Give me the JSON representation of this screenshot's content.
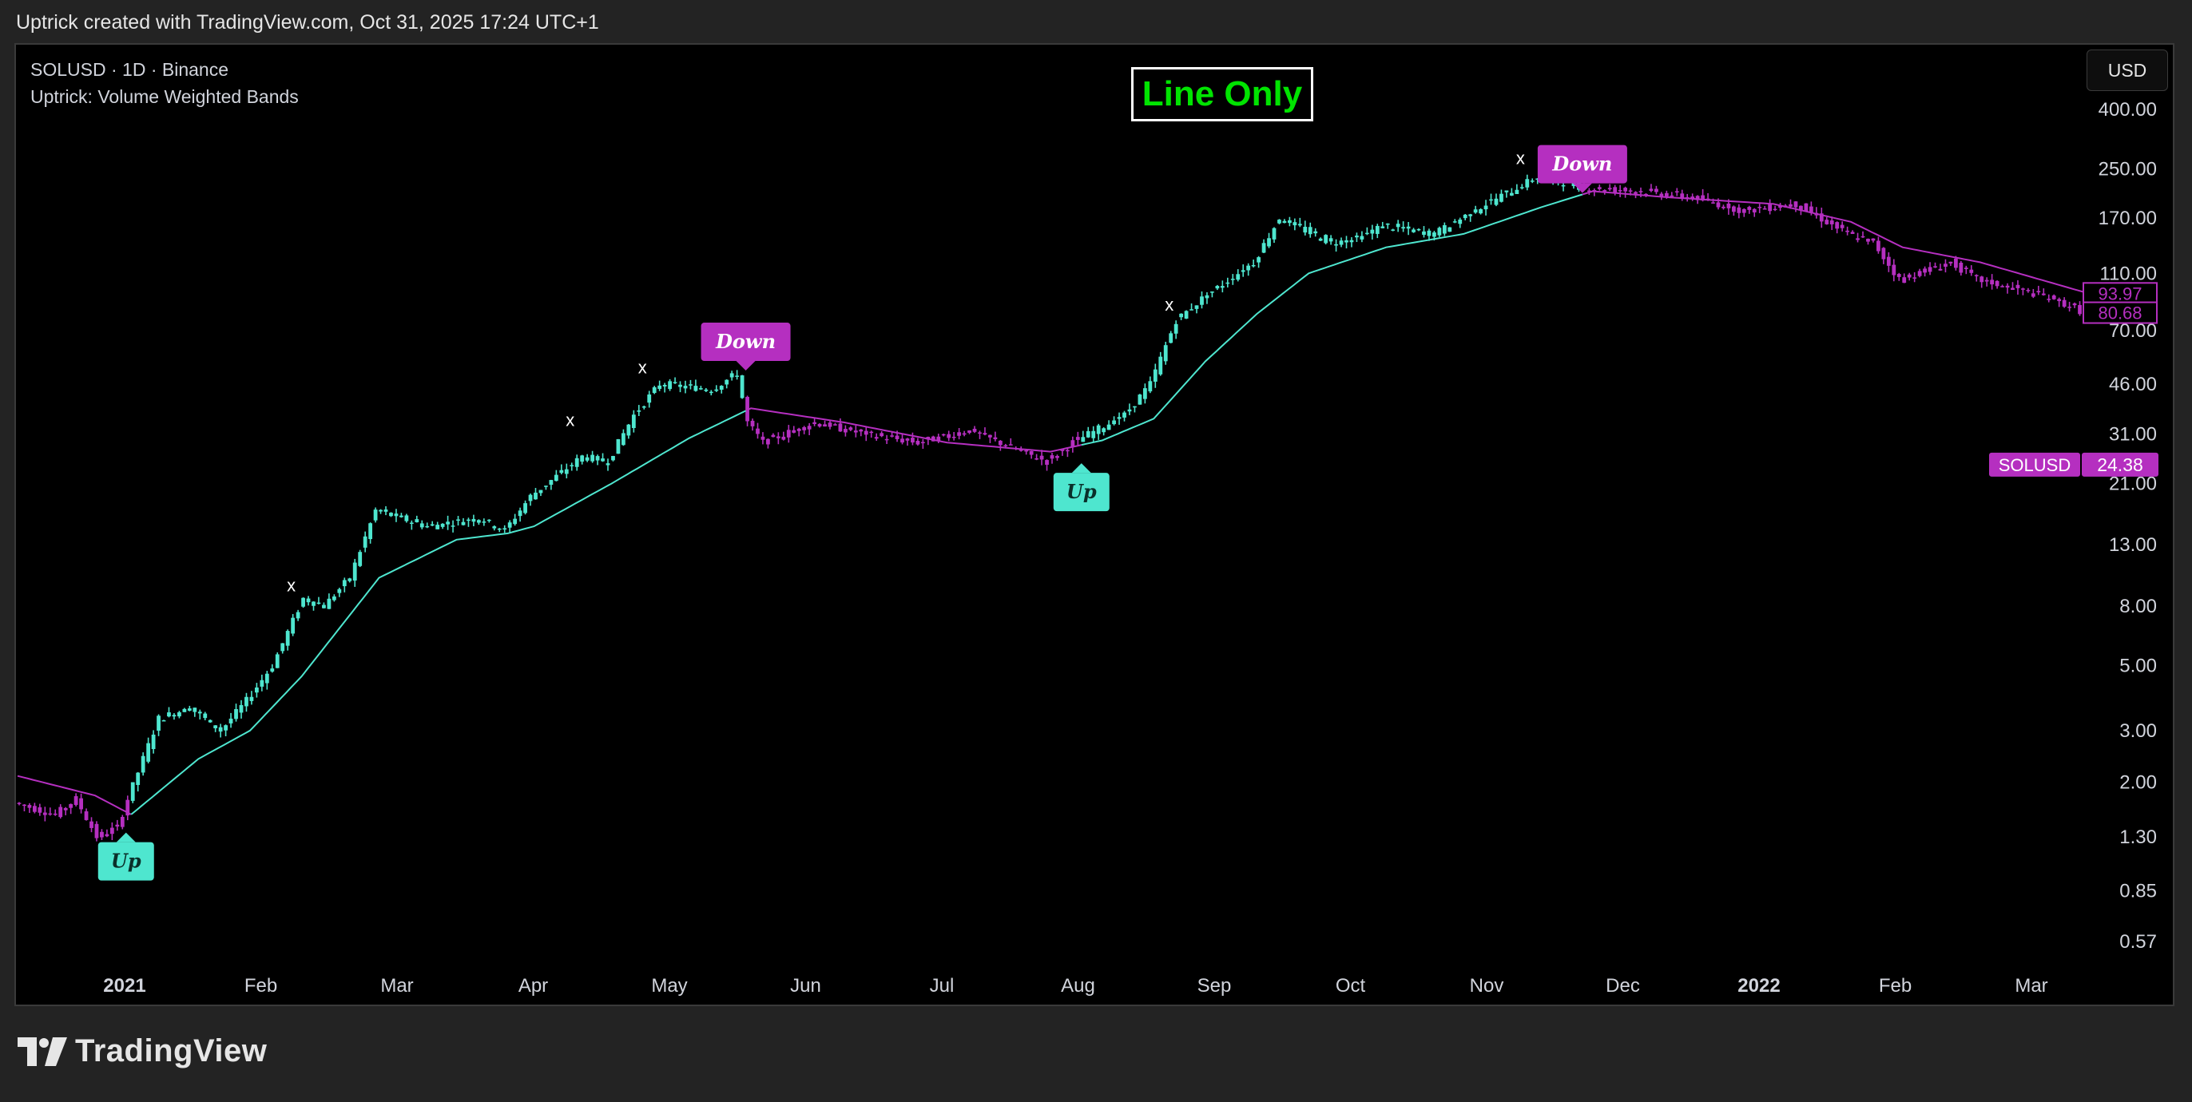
{
  "header": {
    "text": "Uptrick created with TradingView.com, Oct 31, 2025 17:24 UTC+1"
  },
  "symbol_line": "SOLUSD · 1D · Binance",
  "indicator_line": "Uptrick: Volume Weighted Bands",
  "mode_label": "Line Only",
  "currency_button": "USD",
  "footer": {
    "logo_text": "TradingView"
  },
  "colors": {
    "bull": "#4ee6cf",
    "bear": "#b52fc0",
    "background": "#000000",
    "frame": "#232323",
    "mode_label": "#00e400"
  },
  "chart_data": {
    "type": "line",
    "scale": "log",
    "x_ticks": [
      "2021",
      "Feb",
      "Mar",
      "Apr",
      "May",
      "Jun",
      "Jul",
      "Aug",
      "Sep",
      "Oct",
      "Nov",
      "Dec",
      "2022",
      "Feb",
      "Mar"
    ],
    "x_ticks_bold": [
      "2021",
      "2022"
    ],
    "y_ticks": [
      400.0,
      250.0,
      170.0,
      110.0,
      70.0,
      46.0,
      31.0,
      21.0,
      13.0,
      8.0,
      5.0,
      3.0,
      2.0,
      1.3,
      0.85,
      0.57
    ],
    "price_badges": [
      {
        "label": "",
        "value": "93.97",
        "y": 93.97,
        "style": "outline"
      },
      {
        "label": "",
        "value": "80.68",
        "y": 80.68,
        "style": "outline"
      },
      {
        "label": "SOLUSD",
        "value": "24.38",
        "y": 24.38,
        "style": "filled"
      }
    ],
    "price_path": [
      [
        0,
        1.7
      ],
      [
        8,
        1.55
      ],
      [
        12,
        1.75
      ],
      [
        16,
        1.3
      ],
      [
        20,
        1.4
      ],
      [
        22,
        1.75
      ],
      [
        28,
        3.3
      ],
      [
        34,
        3.6
      ],
      [
        40,
        3.0
      ],
      [
        45,
        3.8
      ],
      [
        50,
        5.0
      ],
      [
        56,
        8.5
      ],
      [
        60,
        8.0
      ],
      [
        65,
        10.0
      ],
      [
        70,
        17
      ],
      [
        80,
        15
      ],
      [
        90,
        16
      ],
      [
        95,
        14.5
      ],
      [
        100,
        19
      ],
      [
        110,
        26
      ],
      [
        115,
        25
      ],
      [
        120,
        36
      ],
      [
        125,
        46
      ],
      [
        135,
        44
      ],
      [
        140,
        50
      ],
      [
        142,
        34
      ],
      [
        145,
        29
      ],
      [
        155,
        34
      ],
      [
        165,
        31
      ],
      [
        175,
        29
      ],
      [
        185,
        32
      ],
      [
        195,
        27
      ],
      [
        200,
        25
      ],
      [
        205,
        29
      ],
      [
        215,
        36
      ],
      [
        220,
        46
      ],
      [
        225,
        76
      ],
      [
        230,
        90
      ],
      [
        240,
        120
      ],
      [
        245,
        170
      ],
      [
        255,
        140
      ],
      [
        260,
        145
      ],
      [
        265,
        160
      ],
      [
        275,
        150
      ],
      [
        285,
        190
      ],
      [
        295,
        235
      ],
      [
        305,
        215
      ],
      [
        315,
        210
      ],
      [
        325,
        200
      ],
      [
        335,
        180
      ],
      [
        345,
        190
      ],
      [
        355,
        150
      ],
      [
        360,
        140
      ],
      [
        365,
        105
      ],
      [
        375,
        120
      ],
      [
        380,
        105
      ],
      [
        390,
        95
      ],
      [
        395,
        90
      ],
      [
        400,
        82
      ]
    ],
    "band_path": [
      [
        0,
        2.1
      ],
      [
        15,
        1.8
      ],
      [
        22,
        1.55
      ],
      [
        35,
        2.4
      ],
      [
        45,
        3.0
      ],
      [
        55,
        4.6
      ],
      [
        70,
        10
      ],
      [
        85,
        13.5
      ],
      [
        95,
        14.2
      ],
      [
        100,
        15
      ],
      [
        115,
        21
      ],
      [
        130,
        30
      ],
      [
        142,
        38
      ],
      [
        160,
        34
      ],
      [
        180,
        29
      ],
      [
        200,
        27
      ],
      [
        210,
        29.5
      ],
      [
        220,
        35
      ],
      [
        230,
        55
      ],
      [
        240,
        80
      ],
      [
        250,
        110
      ],
      [
        265,
        135
      ],
      [
        280,
        150
      ],
      [
        295,
        185
      ],
      [
        305,
        210
      ],
      [
        320,
        200
      ],
      [
        340,
        190
      ],
      [
        355,
        165
      ],
      [
        365,
        135
      ],
      [
        380,
        120
      ],
      [
        400,
        95
      ]
    ],
    "signals": [
      {
        "label": "Up",
        "type": "up",
        "x": 21,
        "y": 1.2
      },
      {
        "label": "Down",
        "type": "down",
        "x": 141,
        "y": 58
      },
      {
        "label": "Up",
        "type": "up",
        "x": 206,
        "y": 22
      },
      {
        "label": "Down",
        "type": "down",
        "x": 303,
        "y": 235
      }
    ],
    "x_markers": [
      {
        "x": 53,
        "y": 9.0
      },
      {
        "x": 107,
        "y": 33
      },
      {
        "x": 121,
        "y": 50
      },
      {
        "x": 223,
        "y": 82
      },
      {
        "x": 291,
        "y": 260
      }
    ],
    "regimes": [
      {
        "from": 0,
        "to": 22,
        "trend": "bear"
      },
      {
        "from": 22,
        "to": 141,
        "trend": "bull"
      },
      {
        "from": 141,
        "to": 206,
        "trend": "bear"
      },
      {
        "from": 206,
        "to": 303,
        "trend": "bull"
      },
      {
        "from": 303,
        "to": 400,
        "trend": "bear"
      }
    ]
  }
}
